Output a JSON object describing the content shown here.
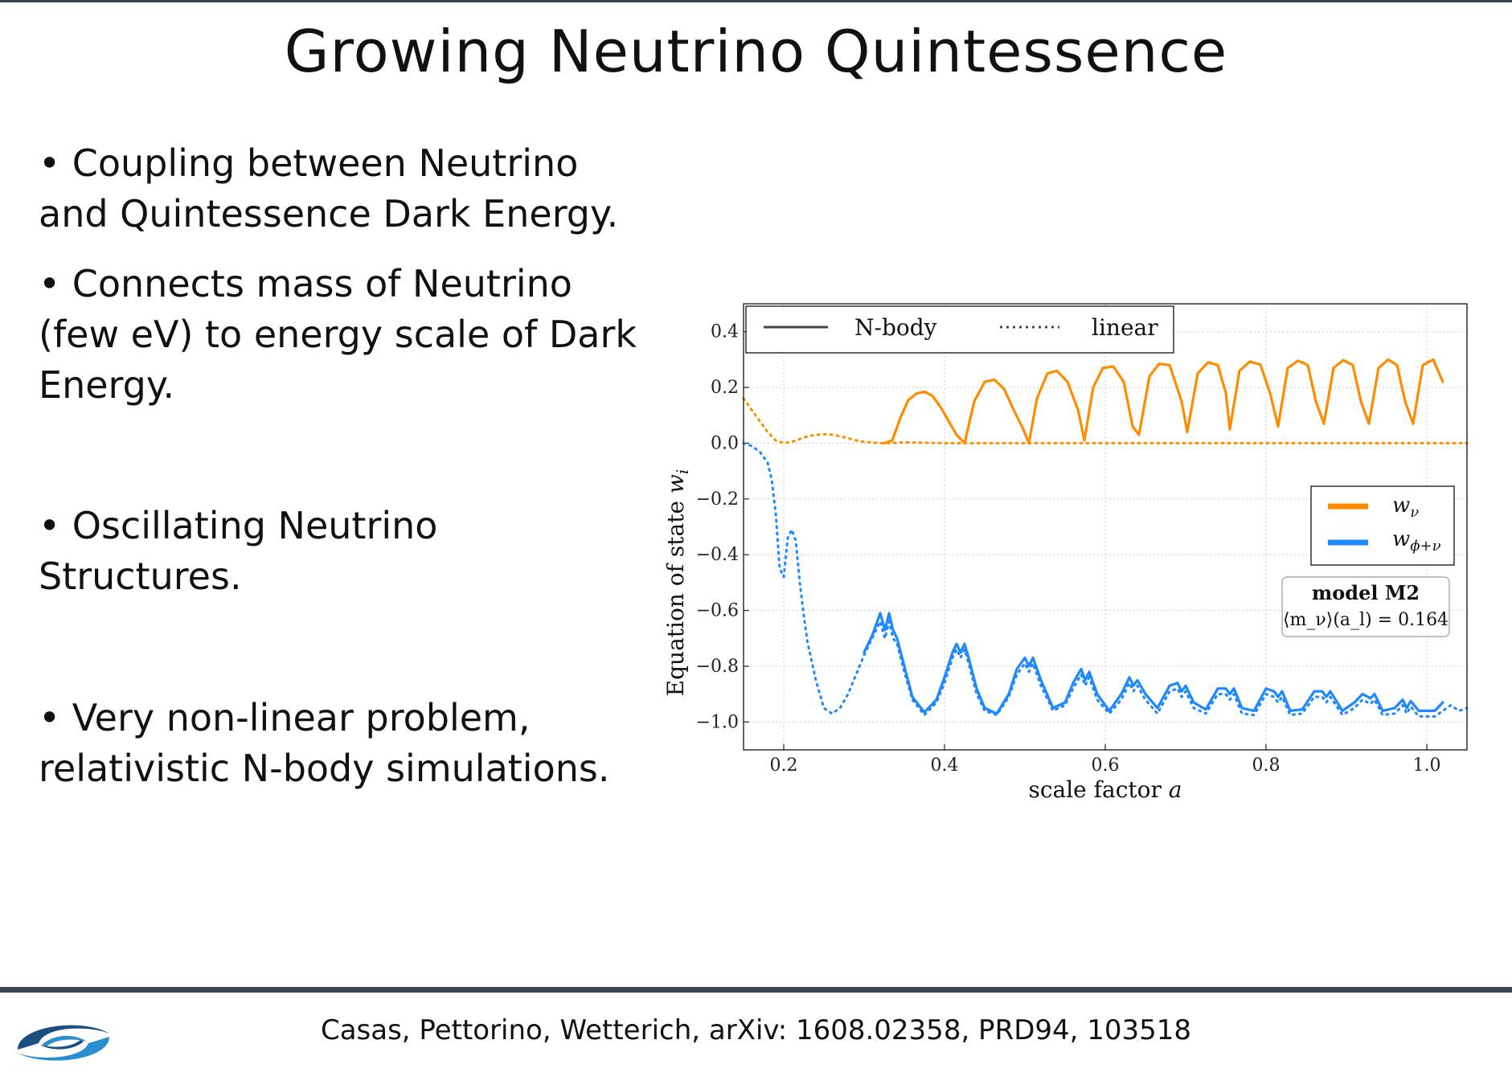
{
  "slide": {
    "title": "Growing Neutrino Quintessence",
    "bullets": [
      {
        "line1": "• Coupling between Neutrino",
        "line2": "and Quintessence Dark Energy.",
        "line3": ""
      },
      {
        "line1": "• Connects mass of Neutrino",
        "line2": "(few eV) to energy scale of Dark",
        "line3": "Energy."
      },
      {
        "line1": "• Oscillating Neutrino",
        "line2": "Structures.",
        "line3": ""
      },
      {
        "line1": "• Very non-linear problem,",
        "line2": "relativistic N-body simulations.",
        "line3": ""
      }
    ],
    "footer": "Casas, Pettorino, Wetterich,  arXiv: 1608.02358, PRD94, 103518",
    "logo_icon": "swirl-logo-icon"
  },
  "chart_data": {
    "type": "line",
    "xlabel_text": "scale factor ",
    "xlabel_var": "a",
    "ylabel_text": "Equation of state ",
    "ylabel_var": "w",
    "ylabel_sub": "i",
    "xlim": [
      0.15,
      1.05
    ],
    "ylim": [
      -1.1,
      0.5
    ],
    "xticks": [
      0.2,
      0.4,
      0.6,
      0.8,
      1.0
    ],
    "xtick_labels": [
      "0.2",
      "0.4",
      "0.6",
      "0.8",
      "1.0"
    ],
    "yticks": [
      0.4,
      0.2,
      0.0,
      -0.2,
      -0.4,
      -0.6,
      -0.8,
      -1.0
    ],
    "ytick_labels": [
      "0.4",
      "0.2",
      "0.0",
      "−0.2",
      "−0.4",
      "−0.6",
      "−0.8",
      "−1.0"
    ],
    "grid": true,
    "style_legend": [
      {
        "label": "N-body",
        "style": "solid"
      },
      {
        "label": "linear",
        "style": "dotted"
      }
    ],
    "series_legend": [
      {
        "var": "w",
        "sub": "ν",
        "color": "#ff8c00"
      },
      {
        "var": "w",
        "sub": "ϕ+ν",
        "color": "#1e88ff"
      }
    ],
    "annotation": {
      "line1": "model M2",
      "line2": "⟨m_ν⟩(a_l) = 0.164"
    },
    "series": [
      {
        "name": "w_nu N-body",
        "color": "#ff8c00",
        "style": "solid",
        "x": [
          0.325,
          0.335,
          0.345,
          0.355,
          0.365,
          0.375,
          0.385,
          0.395,
          0.405,
          0.415,
          0.425,
          0.437,
          0.45,
          0.462,
          0.474,
          0.486,
          0.498,
          0.505,
          0.515,
          0.528,
          0.54,
          0.553,
          0.566,
          0.574,
          0.585,
          0.597,
          0.61,
          0.623,
          0.634,
          0.642,
          0.655,
          0.667,
          0.68,
          0.695,
          0.702,
          0.715,
          0.728,
          0.74,
          0.75,
          0.755,
          0.767,
          0.78,
          0.793,
          0.805,
          0.815,
          0.827,
          0.84,
          0.852,
          0.862,
          0.872,
          0.884,
          0.896,
          0.908,
          0.918,
          0.928,
          0.94,
          0.952,
          0.963,
          0.973,
          0.983,
          0.995,
          1.008,
          1.02
        ],
        "y": [
          0.0,
          0.01,
          0.09,
          0.155,
          0.178,
          0.185,
          0.17,
          0.13,
          0.08,
          0.03,
          0.0,
          0.15,
          0.22,
          0.228,
          0.195,
          0.12,
          0.05,
          0.0,
          0.16,
          0.25,
          0.26,
          0.22,
          0.12,
          0.01,
          0.2,
          0.27,
          0.275,
          0.22,
          0.06,
          0.03,
          0.24,
          0.285,
          0.28,
          0.15,
          0.04,
          0.25,
          0.29,
          0.28,
          0.18,
          0.05,
          0.26,
          0.293,
          0.282,
          0.18,
          0.06,
          0.27,
          0.296,
          0.28,
          0.15,
          0.07,
          0.27,
          0.298,
          0.28,
          0.15,
          0.07,
          0.27,
          0.3,
          0.28,
          0.15,
          0.07,
          0.28,
          0.3,
          0.22
        ]
      },
      {
        "name": "w_nu linear",
        "color": "#ff8c00",
        "style": "dotted",
        "x": [
          0.15,
          0.16,
          0.17,
          0.18,
          0.19,
          0.2,
          0.21,
          0.22,
          0.23,
          0.24,
          0.25,
          0.26,
          0.27,
          0.28,
          0.29,
          0.3,
          0.31,
          0.32,
          0.33,
          0.35,
          0.4,
          0.5,
          0.6,
          0.7,
          0.8,
          0.9,
          1.0,
          1.05
        ],
        "y": [
          0.16,
          0.12,
          0.08,
          0.04,
          0.01,
          0.0,
          0.005,
          0.015,
          0.025,
          0.03,
          0.032,
          0.03,
          0.025,
          0.018,
          0.01,
          0.005,
          0.002,
          0.0,
          0.0,
          0.003,
          0.0,
          0.0,
          0.0,
          0.0,
          0.0,
          0.0,
          0.0,
          0.0
        ]
      },
      {
        "name": "w_phi+nu N-body",
        "color": "#1e88ff",
        "style": "solid",
        "x": [
          0.3,
          0.31,
          0.32,
          0.326,
          0.331,
          0.336,
          0.341,
          0.35,
          0.36,
          0.375,
          0.39,
          0.4,
          0.41,
          0.415,
          0.42,
          0.425,
          0.43,
          0.44,
          0.45,
          0.465,
          0.48,
          0.49,
          0.5,
          0.505,
          0.51,
          0.52,
          0.535,
          0.55,
          0.56,
          0.57,
          0.575,
          0.58,
          0.59,
          0.605,
          0.62,
          0.63,
          0.635,
          0.64,
          0.65,
          0.665,
          0.68,
          0.69,
          0.695,
          0.7,
          0.71,
          0.725,
          0.74,
          0.75,
          0.755,
          0.76,
          0.77,
          0.785,
          0.8,
          0.81,
          0.815,
          0.82,
          0.83,
          0.845,
          0.86,
          0.87,
          0.875,
          0.88,
          0.895,
          0.91,
          0.92,
          0.93,
          0.935,
          0.945,
          0.96,
          0.97,
          0.975,
          0.98,
          0.99,
          1.0,
          1.01,
          1.02
        ],
        "y": [
          -0.75,
          -0.69,
          -0.61,
          -0.67,
          -0.61,
          -0.67,
          -0.7,
          -0.8,
          -0.91,
          -0.965,
          -0.92,
          -0.84,
          -0.75,
          -0.72,
          -0.75,
          -0.72,
          -0.77,
          -0.88,
          -0.95,
          -0.97,
          -0.9,
          -0.81,
          -0.77,
          -0.8,
          -0.77,
          -0.85,
          -0.95,
          -0.93,
          -0.86,
          -0.81,
          -0.85,
          -0.82,
          -0.9,
          -0.96,
          -0.9,
          -0.84,
          -0.87,
          -0.85,
          -0.9,
          -0.95,
          -0.87,
          -0.86,
          -0.89,
          -0.87,
          -0.93,
          -0.955,
          -0.88,
          -0.88,
          -0.9,
          -0.88,
          -0.95,
          -0.96,
          -0.88,
          -0.89,
          -0.91,
          -0.89,
          -0.96,
          -0.955,
          -0.89,
          -0.89,
          -0.91,
          -0.89,
          -0.96,
          -0.93,
          -0.9,
          -0.915,
          -0.9,
          -0.96,
          -0.95,
          -0.92,
          -0.95,
          -0.925,
          -0.96,
          -0.96,
          -0.96,
          -0.93
        ]
      },
      {
        "name": "w_phi+nu linear",
        "color": "#1e88ff",
        "style": "dotted",
        "x": [
          0.15,
          0.16,
          0.17,
          0.18,
          0.185,
          0.19,
          0.195,
          0.2,
          0.205,
          0.21,
          0.215,
          0.22,
          0.225,
          0.23,
          0.24,
          0.25,
          0.26,
          0.27,
          0.28,
          0.29,
          0.3,
          0.31,
          0.32,
          0.326,
          0.331,
          0.336,
          0.341,
          0.35,
          0.36,
          0.375,
          0.39,
          0.4,
          0.41,
          0.415,
          0.42,
          0.425,
          0.43,
          0.44,
          0.45,
          0.465,
          0.48,
          0.49,
          0.5,
          0.505,
          0.51,
          0.52,
          0.535,
          0.55,
          0.56,
          0.57,
          0.575,
          0.58,
          0.59,
          0.605,
          0.62,
          0.63,
          0.635,
          0.64,
          0.65,
          0.665,
          0.68,
          0.69,
          0.695,
          0.7,
          0.71,
          0.725,
          0.74,
          0.75,
          0.755,
          0.76,
          0.77,
          0.785,
          0.8,
          0.81,
          0.815,
          0.82,
          0.83,
          0.845,
          0.86,
          0.87,
          0.875,
          0.88,
          0.895,
          0.91,
          0.92,
          0.93,
          0.935,
          0.945,
          0.96,
          0.97,
          0.975,
          0.98,
          0.99,
          1.0,
          1.01,
          1.02,
          1.03,
          1.04,
          1.05
        ],
        "y": [
          0.0,
          -0.01,
          -0.03,
          -0.07,
          -0.13,
          -0.25,
          -0.45,
          -0.48,
          -0.34,
          -0.31,
          -0.35,
          -0.5,
          -0.62,
          -0.72,
          -0.85,
          -0.95,
          -0.97,
          -0.95,
          -0.9,
          -0.83,
          -0.76,
          -0.7,
          -0.64,
          -0.7,
          -0.64,
          -0.7,
          -0.72,
          -0.82,
          -0.92,
          -0.975,
          -0.93,
          -0.86,
          -0.77,
          -0.74,
          -0.77,
          -0.74,
          -0.79,
          -0.9,
          -0.96,
          -0.975,
          -0.91,
          -0.83,
          -0.79,
          -0.82,
          -0.79,
          -0.87,
          -0.96,
          -0.94,
          -0.88,
          -0.83,
          -0.87,
          -0.84,
          -0.92,
          -0.97,
          -0.92,
          -0.86,
          -0.89,
          -0.87,
          -0.92,
          -0.97,
          -0.89,
          -0.88,
          -0.91,
          -0.89,
          -0.95,
          -0.97,
          -0.9,
          -0.9,
          -0.92,
          -0.9,
          -0.97,
          -0.975,
          -0.9,
          -0.91,
          -0.93,
          -0.91,
          -0.975,
          -0.97,
          -0.91,
          -0.91,
          -0.93,
          -0.91,
          -0.975,
          -0.95,
          -0.92,
          -0.935,
          -0.92,
          -0.975,
          -0.97,
          -0.94,
          -0.97,
          -0.945,
          -0.98,
          -0.98,
          -0.98,
          -0.96,
          -0.94,
          -0.96,
          -0.95
        ]
      }
    ]
  }
}
